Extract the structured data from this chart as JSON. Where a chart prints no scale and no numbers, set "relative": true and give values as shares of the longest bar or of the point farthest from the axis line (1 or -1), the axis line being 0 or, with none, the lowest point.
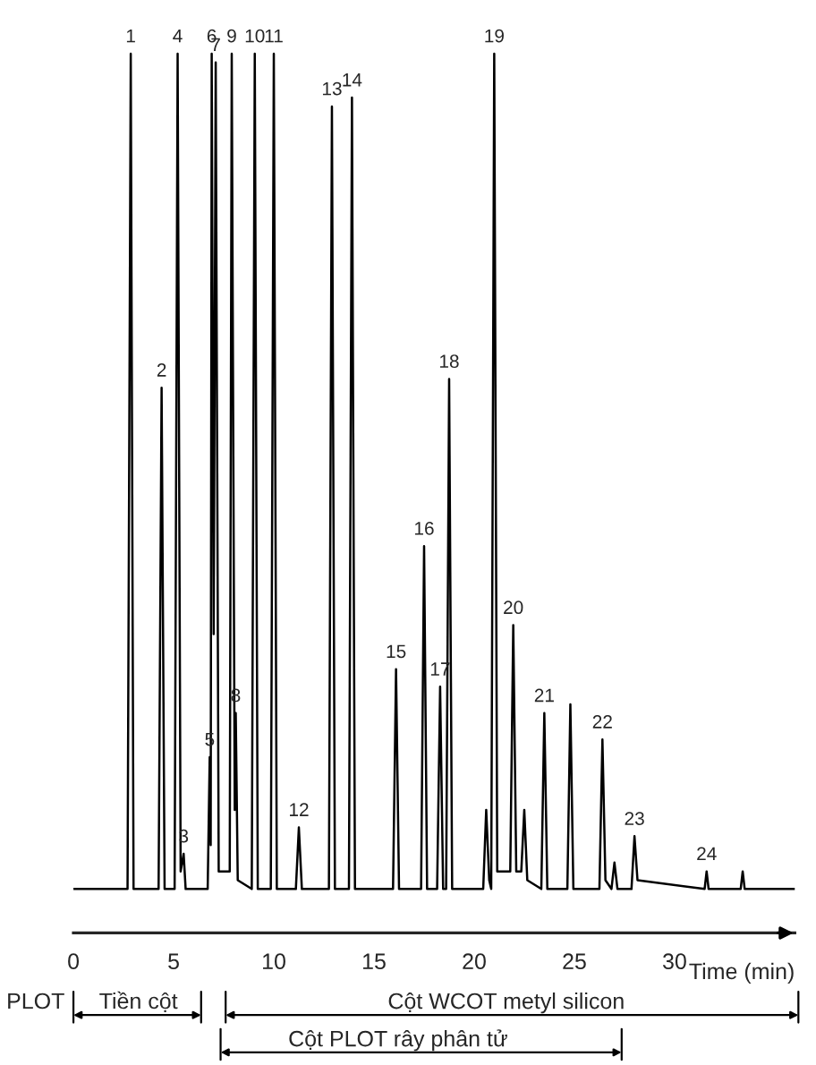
{
  "chart_data": {
    "type": "line",
    "relative": true,
    "xlabel": "Time (min)",
    "xlim": [
      0,
      36
    ],
    "xticks": [
      0,
      5,
      10,
      15,
      20,
      25,
      30
    ],
    "grid": false,
    "legend": false,
    "marker": "none",
    "line_style": "solid",
    "x": [
      0,
      2.7,
      2.86,
      3.0,
      4.25,
      4.4,
      4.55,
      5.05,
      5.2,
      5.35,
      5.5,
      5.6,
      6.7,
      6.8,
      6.85,
      6.9,
      7.0,
      7.1,
      7.25,
      7.8,
      7.9,
      8.05,
      8.1,
      8.2,
      8.9,
      9.05,
      9.2,
      9.85,
      10.0,
      10.15,
      11.1,
      11.25,
      11.4,
      12.75,
      12.9,
      13.05,
      13.75,
      13.9,
      14.05,
      15.95,
      16.1,
      16.25,
      17.35,
      17.5,
      17.65,
      18.15,
      18.3,
      18.45,
      18.6,
      18.75,
      18.9,
      20.45,
      20.6,
      20.75,
      20.85,
      21.0,
      21.15,
      21.8,
      21.95,
      22.1,
      22.35,
      22.5,
      22.65,
      23.35,
      23.5,
      23.65,
      24.65,
      24.8,
      24.95,
      26.25,
      26.4,
      26.55,
      26.85,
      27.0,
      27.15,
      27.85,
      28.0,
      28.15,
      31.5,
      31.6,
      31.7,
      33.3,
      33.4,
      33.5,
      36
    ],
    "series": [
      {
        "color": "#000000",
        "values": [
          0.05,
          0.05,
          1.0,
          0.05,
          0.05,
          0.62,
          0.05,
          0.05,
          1.0,
          0.07,
          0.09,
          0.05,
          0.05,
          0.2,
          0.1,
          1.0,
          0.34,
          0.99,
          0.07,
          0.07,
          1.0,
          0.14,
          0.25,
          0.06,
          0.05,
          1.0,
          0.05,
          0.05,
          1.0,
          0.05,
          0.05,
          0.12,
          0.05,
          0.05,
          0.94,
          0.05,
          0.05,
          0.95,
          0.05,
          0.05,
          0.3,
          0.05,
          0.05,
          0.44,
          0.05,
          0.05,
          0.28,
          0.05,
          0.05,
          0.63,
          0.05,
          0.05,
          0.14,
          0.06,
          0.05,
          1.0,
          0.07,
          0.07,
          0.35,
          0.07,
          0.07,
          0.14,
          0.06,
          0.05,
          0.25,
          0.05,
          0.05,
          0.26,
          0.05,
          0.05,
          0.22,
          0.06,
          0.05,
          0.08,
          0.05,
          0.05,
          0.11,
          0.06,
          0.05,
          0.07,
          0.05,
          0.05,
          0.07,
          0.05,
          0.05
        ]
      }
    ],
    "annotations": [
      {
        "text": "1",
        "x": 2.86,
        "y": 1.0
      },
      {
        "text": "2",
        "x": 4.4,
        "y": 0.62
      },
      {
        "text": "3",
        "x": 5.5,
        "y": 0.09
      },
      {
        "text": "4",
        "x": 5.2,
        "y": 1.0
      },
      {
        "text": "5",
        "x": 6.8,
        "y": 0.2
      },
      {
        "text": "6",
        "x": 6.9,
        "y": 1.0
      },
      {
        "text": "7",
        "x": 7.1,
        "y": 0.99
      },
      {
        "text": "8",
        "x": 8.1,
        "y": 0.25
      },
      {
        "text": "9",
        "x": 7.9,
        "y": 1.0
      },
      {
        "text": "10",
        "x": 9.05,
        "y": 1.0
      },
      {
        "text": "11",
        "x": 10.0,
        "y": 1.0
      },
      {
        "text": "12",
        "x": 11.25,
        "y": 0.12
      },
      {
        "text": "13",
        "x": 12.9,
        "y": 0.94
      },
      {
        "text": "14",
        "x": 13.9,
        "y": 0.95
      },
      {
        "text": "15",
        "x": 16.1,
        "y": 0.3
      },
      {
        "text": "16",
        "x": 17.5,
        "y": 0.44
      },
      {
        "text": "17",
        "x": 18.3,
        "y": 0.28
      },
      {
        "text": "18",
        "x": 18.75,
        "y": 0.63
      },
      {
        "text": "19",
        "x": 21.0,
        "y": 1.0
      },
      {
        "text": "20",
        "x": 21.95,
        "y": 0.35
      },
      {
        "text": "21",
        "x": 23.5,
        "y": 0.25
      },
      {
        "text": "22",
        "x": 26.4,
        "y": 0.22
      },
      {
        "text": "23",
        "x": 28.0,
        "y": 0.11
      },
      {
        "text": "24",
        "x": 31.6,
        "y": 0.07
      },
      "PLOT",
      "Tiền cột",
      "Cột WCOT metyl silicon",
      "Cột PLOT rây phân tử"
    ]
  }
}
